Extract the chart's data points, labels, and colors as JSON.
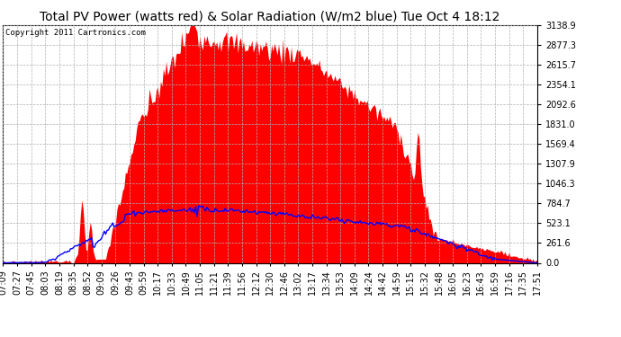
{
  "title": "Total PV Power (watts red) & Solar Radiation (W/m2 blue) Tue Oct 4 18:12",
  "copyright": "Copyright 2011 Cartronics.com",
  "background_color": "#ffffff",
  "plot_bg_color": "#ffffff",
  "grid_color": "#b0b0b0",
  "x_labels": [
    "07:09",
    "07:27",
    "07:45",
    "08:03",
    "08:19",
    "08:35",
    "08:52",
    "09:09",
    "09:26",
    "09:43",
    "09:59",
    "10:17",
    "10:33",
    "10:49",
    "11:05",
    "11:21",
    "11:39",
    "11:56",
    "12:12",
    "12:30",
    "12:46",
    "13:02",
    "13:17",
    "13:34",
    "13:53",
    "14:09",
    "14:24",
    "14:42",
    "14:59",
    "15:15",
    "15:32",
    "15:48",
    "16:05",
    "16:23",
    "16:43",
    "16:59",
    "17:16",
    "17:35",
    "17:51"
  ],
  "y_ticks": [
    0.0,
    261.6,
    523.1,
    784.7,
    1046.3,
    1307.9,
    1569.4,
    1831.0,
    2092.6,
    2354.1,
    2615.7,
    2877.3,
    3138.9
  ],
  "ymax": 3138.9,
  "pv_color": "#ff0000",
  "solar_color": "#0000ff",
  "title_fontsize": 10,
  "tick_fontsize": 7,
  "copyright_fontsize": 6.5
}
